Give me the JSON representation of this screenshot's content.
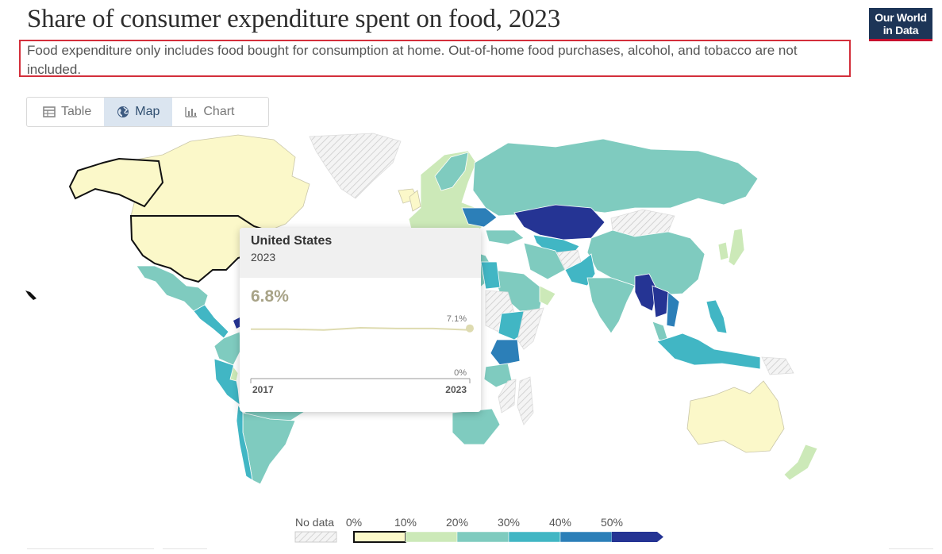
{
  "header": {
    "title": "Share of consumer expenditure spent on food, 2023",
    "subtitle": "Food expenditure only includes food bought for consumption at home. Out-of-home food purchases, alcohol, and tobacco are not included.",
    "logo_line1": "Our World",
    "logo_line2": "in Data"
  },
  "tabs": [
    {
      "label": "Table",
      "icon": "table-icon",
      "active": false
    },
    {
      "label": "Map",
      "icon": "globe-icon",
      "active": true
    },
    {
      "label": "Chart",
      "icon": "chart-icon",
      "active": false
    }
  ],
  "tooltip": {
    "country": "United States",
    "year": "2023",
    "value": "6.8%",
    "spark_max_label": "7.1%",
    "spark_min_label": "0%",
    "start_year": "2017",
    "end_year": "2023",
    "series_values": [
      6.9,
      6.9,
      6.8,
      7.1,
      7.0,
      7.0,
      6.8
    ],
    "series_years": [
      2017,
      2018,
      2019,
      2020,
      2021,
      2022,
      2023
    ],
    "y_max": 7.1
  },
  "legend": {
    "no_data_label": "No data",
    "ticks": [
      "0%",
      "10%",
      "20%",
      "30%",
      "40%",
      "50%"
    ],
    "bins": [
      {
        "color": "#fbf8c9"
      },
      {
        "color": "#cce9b8"
      },
      {
        "color": "#7fcbbf"
      },
      {
        "color": "#41b6c4"
      },
      {
        "color": "#2c7fb8"
      },
      {
        "color": "#253494"
      }
    ],
    "selected_bin": 0
  },
  "colors": {
    "nodata": "#e6e6e6",
    "c0": "#fbf8c9",
    "c10": "#cce9b8",
    "c20": "#7fcbbf",
    "c30": "#41b6c4",
    "c40": "#2c7fb8",
    "c50": "#253494"
  }
}
